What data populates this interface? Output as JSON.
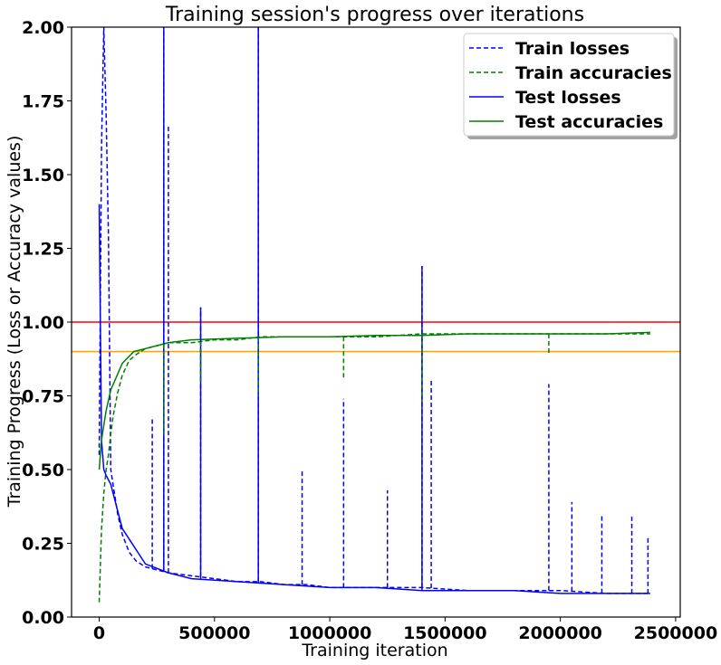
{
  "chart_data": {
    "type": "line",
    "title": "Training session's progress over iterations",
    "xlabel": "Training iteration",
    "ylabel": "Training Progress (Loss or Accuracy values)",
    "xlim": [
      -120000,
      2520000
    ],
    "ylim": [
      0,
      2
    ],
    "x_ticks": [
      0,
      500000,
      1000000,
      1500000,
      2000000,
      2500000
    ],
    "x_tick_labels": [
      "0",
      "500000",
      "1000000",
      "1500000",
      "2000000",
      "2500000"
    ],
    "y_ticks": [
      0,
      0.25,
      0.5,
      0.75,
      1.0,
      1.25,
      1.5,
      1.75,
      2.0
    ],
    "y_tick_labels": [
      "0.00",
      "0.25",
      "0.50",
      "0.75",
      "1.00",
      "1.25",
      "1.50",
      "1.75",
      "2.00"
    ],
    "grid": false,
    "legend_position": "top-right",
    "reference_lines": [
      {
        "y": 1.0,
        "color": "#ff0000"
      },
      {
        "y": 0.9,
        "color": "#ffa500"
      }
    ],
    "series": [
      {
        "name": "Train losses",
        "color": "#0000ff",
        "style": "dashed",
        "x": [
          0,
          10000,
          20000,
          30000,
          40000,
          50000,
          60000,
          80000,
          100000,
          130000,
          160000,
          200000,
          250000,
          300000,
          400000,
          500000,
          600000,
          700000,
          800000,
          900000,
          1000000,
          1200000,
          1400000,
          1600000,
          1800000,
          2000000,
          2200000,
          2390000
        ],
        "y": [
          0.55,
          1.6,
          2.0,
          1.7,
          1.3,
          0.5,
          0.45,
          0.35,
          0.28,
          0.22,
          0.19,
          0.17,
          0.16,
          0.15,
          0.14,
          0.13,
          0.12,
          0.12,
          0.11,
          0.11,
          0.1,
          0.1,
          0.1,
          0.09,
          0.09,
          0.09,
          0.08,
          0.08
        ]
      },
      {
        "name": "Train accuracies",
        "color": "#008000",
        "style": "dashed",
        "x": [
          0,
          10000,
          20000,
          30000,
          40000,
          50000,
          60000,
          80000,
          100000,
          130000,
          160000,
          200000,
          250000,
          300000,
          400000,
          500000,
          600000,
          700000,
          800000,
          900000,
          1000000,
          1200000,
          1400000,
          1600000,
          1800000,
          2000000,
          2200000,
          2390000
        ],
        "y": [
          0.05,
          0.3,
          0.42,
          0.5,
          0.55,
          0.62,
          0.68,
          0.76,
          0.82,
          0.87,
          0.89,
          0.91,
          0.92,
          0.93,
          0.93,
          0.94,
          0.94,
          0.95,
          0.95,
          0.95,
          0.95,
          0.95,
          0.96,
          0.96,
          0.96,
          0.96,
          0.96,
          0.96
        ]
      },
      {
        "name": "Test losses",
        "color": "#0000ff",
        "style": "solid",
        "x": [
          0,
          10000,
          20000,
          30000,
          50000,
          100000,
          200000,
          300000,
          400000,
          600000,
          800000,
          1000000,
          1200000,
          1400000,
          1600000,
          1800000,
          2000000,
          2200000,
          2390000
        ],
        "y": [
          1.4,
          0.6,
          0.5,
          0.48,
          0.45,
          0.3,
          0.18,
          0.15,
          0.13,
          0.12,
          0.11,
          0.1,
          0.1,
          0.09,
          0.09,
          0.09,
          0.08,
          0.08,
          0.08
        ]
      },
      {
        "name": "Test accuracies",
        "color": "#008000",
        "style": "solid",
        "x": [
          0,
          10000,
          20000,
          30000,
          50000,
          100000,
          150000,
          200000,
          300000,
          400000,
          600000,
          800000,
          1000000,
          1200000,
          1400000,
          1600000,
          1800000,
          2000000,
          2200000,
          2390000
        ],
        "y": [
          0.5,
          0.6,
          0.65,
          0.7,
          0.77,
          0.86,
          0.9,
          0.91,
          0.93,
          0.94,
          0.945,
          0.95,
          0.95,
          0.955,
          0.955,
          0.96,
          0.96,
          0.96,
          0.96,
          0.965
        ]
      }
    ],
    "spikes": [
      {
        "series": "Train losses",
        "points": [
          [
            280000,
            2.0
          ],
          [
            300000,
            1.67
          ],
          [
            440000,
            1.05
          ],
          [
            690000,
            2.0
          ],
          [
            1060000,
            0.74
          ],
          [
            1400000,
            1.19
          ],
          [
            1440000,
            0.81
          ],
          [
            1950000,
            0.79
          ],
          [
            2050000,
            0.39
          ],
          [
            2180000,
            0.35
          ],
          [
            2310000,
            0.34
          ],
          [
            2380000,
            0.27
          ],
          [
            230000,
            0.68
          ],
          [
            880000,
            0.5
          ],
          [
            1250000,
            0.43
          ]
        ]
      },
      {
        "series": "Test losses",
        "points": [
          [
            280000,
            2.0
          ],
          [
            690000,
            2.0
          ],
          [
            1400000,
            1.19
          ],
          [
            440000,
            1.05
          ]
        ]
      },
      {
        "series": "Train accuracies",
        "points": [
          [
            280000,
            0.62
          ],
          [
            440000,
            0.8
          ],
          [
            690000,
            0.75
          ],
          [
            1060000,
            0.81
          ],
          [
            1400000,
            0.73
          ],
          [
            1950000,
            0.89
          ]
        ]
      }
    ]
  }
}
